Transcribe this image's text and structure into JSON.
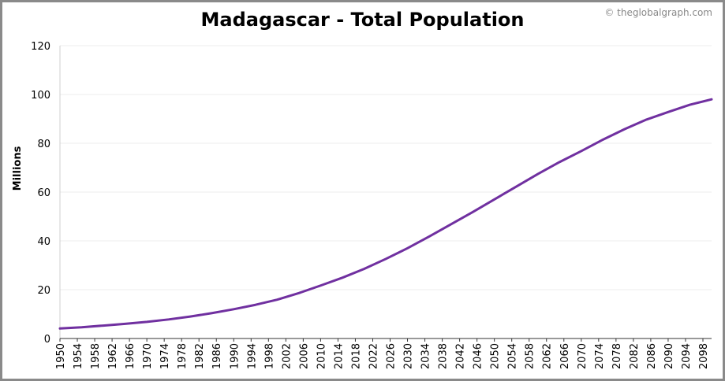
{
  "chart_data": {
    "type": "line",
    "title": "Madagascar - Total Population",
    "credit": "© theglobalgraph.com",
    "ylabel": "Millions",
    "xlabel": "",
    "ylim": [
      0,
      120
    ],
    "yticks": [
      0,
      20,
      40,
      60,
      80,
      100,
      120
    ],
    "xlim": [
      1950,
      2100
    ],
    "xticks": [
      1950,
      1954,
      1958,
      1962,
      1966,
      1970,
      1974,
      1978,
      1982,
      1986,
      1990,
      1994,
      1998,
      2002,
      2006,
      2010,
      2014,
      2018,
      2022,
      2026,
      2030,
      2034,
      2038,
      2042,
      2046,
      2050,
      2054,
      2058,
      2062,
      2066,
      2070,
      2074,
      2078,
      2082,
      2086,
      2090,
      2094,
      2098
    ],
    "grid": true,
    "line_color": "#7030A0",
    "series": [
      {
        "x": [
          1950,
          1955,
          1960,
          1965,
          1970,
          1975,
          1980,
          1985,
          1990,
          1995,
          2000,
          2005,
          2010,
          2015,
          2020,
          2025,
          2030,
          2035,
          2040,
          2045,
          2050,
          2055,
          2060,
          2065,
          2070,
          2075,
          2080,
          2085,
          2090,
          2095,
          2100
        ],
        "values": [
          4.1,
          4.6,
          5.3,
          6.0,
          6.8,
          7.8,
          9.0,
          10.4,
          12.0,
          13.8,
          15.9,
          18.6,
          21.7,
          24.9,
          28.5,
          32.6,
          37.0,
          41.8,
          46.8,
          51.8,
          57.0,
          62.2,
          67.4,
          72.3,
          76.8,
          81.5,
          85.8,
          89.7,
          92.8,
          95.8,
          98.0
        ]
      }
    ]
  }
}
